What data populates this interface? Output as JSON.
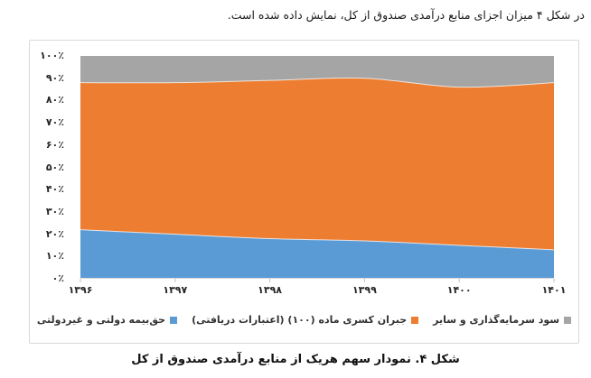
{
  "page": {
    "intro_text": "در شکل ۴ میزان اجزای منابع درآمدی صندوق از کل، نمایش داده شده است.",
    "caption": "شکل ۴. نمودار سهم هریک از منابع درآمدی صندوق از کل"
  },
  "colors": {
    "series_blue": "#5B9BD5",
    "series_orange": "#ED7D31",
    "series_gray": "#A5A5A5",
    "axis_line": "#D9D9D9",
    "tick_mark": "#BFBFBF",
    "chart_border": "#D9D9D9",
    "label_text": "#262626"
  },
  "chart_data": {
    "type": "area",
    "stacked": true,
    "title": "",
    "xlabel": "",
    "ylabel": "",
    "ylim": [
      0,
      100
    ],
    "grid": false,
    "legend_position": "bottom",
    "x_labels": [
      "۱۳۹۶",
      "۱۳۹۷",
      "۱۳۹۸",
      "۱۳۹۹",
      "۱۴۰۰",
      "۱۴۰۱"
    ],
    "x_labels_western": [
      "1396",
      "1397",
      "1398",
      "1399",
      "1400",
      "1401"
    ],
    "y_tick_labels": [
      "۱۰۰٪",
      "۹۰٪",
      "۸۰٪",
      "۷۰٪",
      "۶۰٪",
      "۵۰٪",
      "۴۰٪",
      "۳۰٪",
      "۲۰٪",
      "۱۰٪",
      "۰٪"
    ],
    "y_tick_percents": [
      100,
      90,
      80,
      70,
      60,
      50,
      40,
      30,
      20,
      10,
      0
    ],
    "series": [
      {
        "name": "حق‌بیمه دولتی و غیردولتی",
        "color": "#5B9BD5",
        "values": [
          22,
          20,
          18,
          17,
          15,
          13
        ]
      },
      {
        "name": "جبران کسری ماده (۱۰۰) (اعتبارات دریافتی)",
        "color": "#ED7D31",
        "values": [
          66,
          68,
          71,
          73,
          71,
          75
        ]
      },
      {
        "name": "سود سرمایه‌گذاری و سایر",
        "color": "#A5A5A5",
        "values": [
          12,
          12,
          11,
          10,
          14,
          12
        ]
      }
    ]
  }
}
